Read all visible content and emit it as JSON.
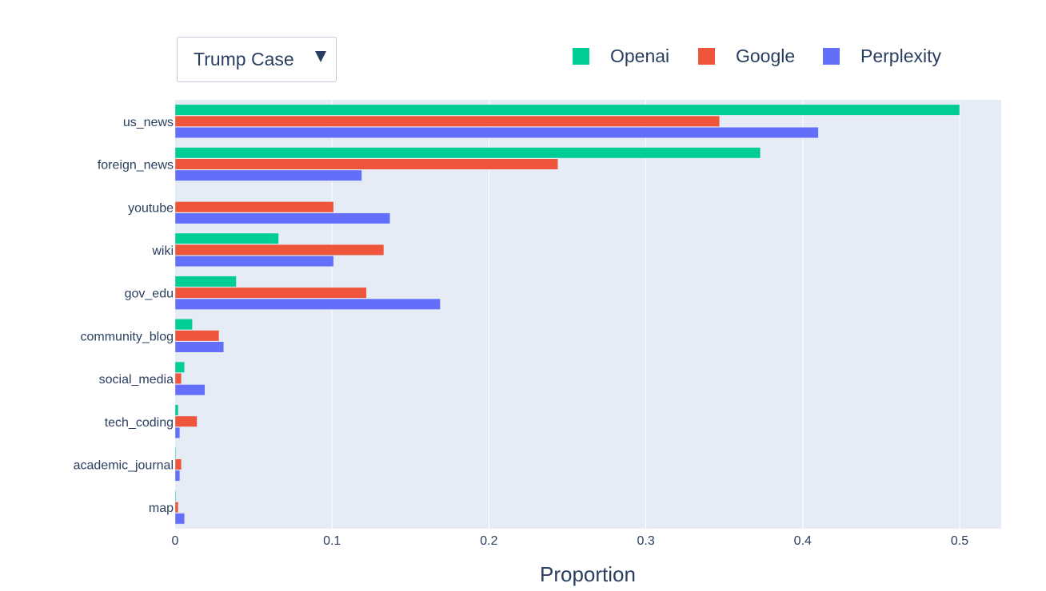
{
  "dropdown": {
    "selected": "Trump Case"
  },
  "chart_data": {
    "type": "bar",
    "orientation": "horizontal",
    "barmode": "group",
    "categories": [
      "us_news",
      "foreign_news",
      "youtube",
      "wiki",
      "gov_edu",
      "community_blog",
      "social_media",
      "tech_coding",
      "academic_journal",
      "map"
    ],
    "series": [
      {
        "name": "Openai",
        "color": "#00cc96",
        "values": [
          0.5,
          0.373,
          0.0,
          0.066,
          0.039,
          0.011,
          0.006,
          0.002,
          0.0005,
          0.0005
        ]
      },
      {
        "name": "Google",
        "color": "#ef553b",
        "values": [
          0.347,
          0.244,
          0.101,
          0.133,
          0.122,
          0.028,
          0.004,
          0.014,
          0.004,
          0.002
        ]
      },
      {
        "name": "Perplexity",
        "color": "#636efa",
        "values": [
          0.41,
          0.119,
          0.137,
          0.101,
          0.169,
          0.031,
          0.019,
          0.003,
          0.003,
          0.006
        ]
      }
    ],
    "xlabel": "Proportion",
    "ylabel": "",
    "xlim": [
      0,
      0.526
    ],
    "xticks": [
      0,
      0.1,
      0.2,
      0.3,
      0.4,
      0.5
    ],
    "xtick_labels": [
      "0",
      "0.1",
      "0.2",
      "0.3",
      "0.4",
      "0.5"
    ],
    "grid": true,
    "legend_position": "top-right",
    "plot_background": "#e5ecf6",
    "text_color": "#2a3f5f"
  }
}
